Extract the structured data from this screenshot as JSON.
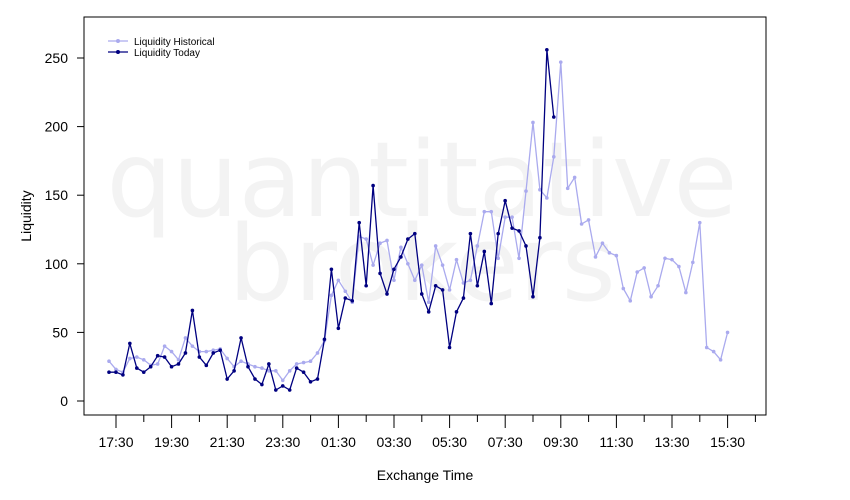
{
  "watermark": {
    "line1": "quantitative",
    "line2": "brokers"
  },
  "chart_data": {
    "type": "line",
    "xlabel": "Exchange Time",
    "ylabel": "Liquidity",
    "ylim": [
      -8,
      280
    ],
    "yticks": [
      0,
      50,
      100,
      150,
      200,
      250
    ],
    "xtick_labels": [
      "17:30",
      "19:30",
      "21:30",
      "23:30",
      "01:30",
      "03:30",
      "05:30",
      "07:30",
      "09:30",
      "11:30",
      "13:30",
      "15:30"
    ],
    "x_start": "17:30",
    "interval_minutes": 15,
    "legend_position": "top-left",
    "series": [
      {
        "name": "Liquidity Historical",
        "color": "#aaaaee",
        "values": [
          29,
          23,
          21,
          31,
          32,
          30,
          26,
          27,
          40,
          36,
          30,
          46,
          40,
          36,
          36,
          37,
          38,
          31,
          25,
          29,
          27,
          25,
          24,
          22,
          22,
          15,
          22,
          27,
          28,
          29,
          35,
          44,
          77,
          88,
          80,
          72,
          120,
          118,
          99,
          115,
          117,
          88,
          112,
          100,
          88,
          99,
          72,
          113,
          99,
          81,
          103,
          86,
          88,
          113,
          138,
          138,
          104,
          134,
          134,
          104,
          153,
          203,
          154,
          148,
          178,
          247,
          155,
          163,
          129,
          132,
          105,
          115,
          108,
          106,
          82,
          73,
          94,
          97,
          76,
          84,
          104,
          103,
          98,
          79,
          101,
          130,
          39,
          36,
          30,
          50
        ]
      },
      {
        "name": "Liquidity Today",
        "color": "#000080",
        "values": [
          21,
          21,
          19,
          42,
          24,
          21,
          25,
          33,
          32,
          25,
          27,
          35,
          66,
          32,
          26,
          35,
          37,
          16,
          22,
          46,
          25,
          16,
          12,
          27,
          8,
          11,
          8,
          24,
          21,
          14,
          16,
          45,
          96,
          53,
          75,
          73,
          130,
          84,
          157,
          93,
          78,
          96,
          105,
          118,
          122,
          78,
          65,
          84,
          81,
          39,
          65,
          75,
          122,
          84,
          109,
          71,
          122,
          146,
          126,
          124,
          113,
          76,
          119,
          256,
          207
        ]
      }
    ]
  }
}
